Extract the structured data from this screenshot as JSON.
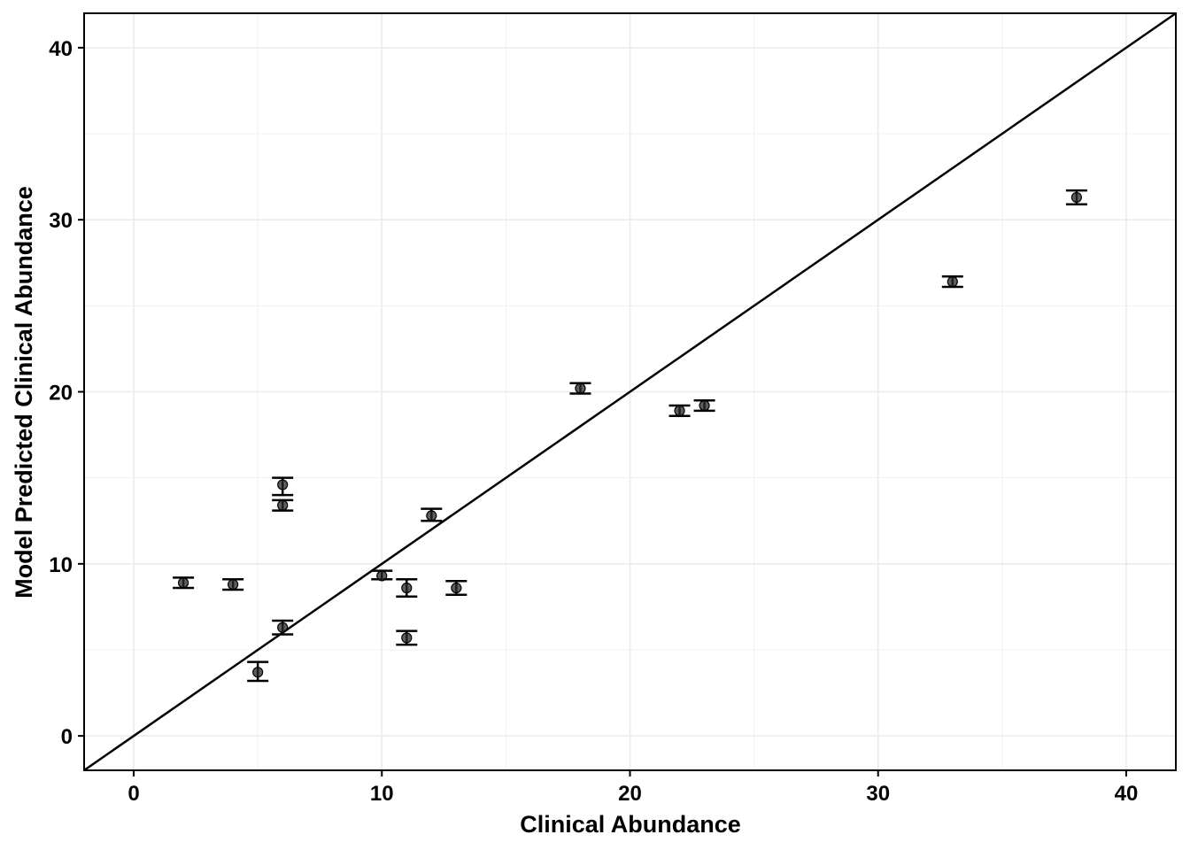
{
  "chart_data": {
    "type": "scatter",
    "title": "",
    "xlabel": "Clinical Abundance",
    "ylabel": "Model Predicted Clinical Abundance",
    "xlim": [
      -2,
      42
    ],
    "ylim": [
      -2,
      42
    ],
    "x_ticks": [
      0,
      10,
      20,
      30,
      40
    ],
    "y_ticks": [
      0,
      10,
      20,
      30,
      40
    ],
    "x_tick_labels": [
      "0",
      "10",
      "20",
      "30",
      "40"
    ],
    "y_tick_labels": [
      "0",
      "10",
      "20",
      "30",
      "40"
    ],
    "grid": true,
    "reference_line": "y = x",
    "points": [
      {
        "x": 2,
        "y": 8.9,
        "ymin": 8.6,
        "ymax": 9.2
      },
      {
        "x": 4,
        "y": 8.8,
        "ymin": 8.5,
        "ymax": 9.1
      },
      {
        "x": 5,
        "y": 3.7,
        "ymin": 3.2,
        "ymax": 4.3
      },
      {
        "x": 6,
        "y": 14.6,
        "ymin": 14.0,
        "ymax": 15.0
      },
      {
        "x": 6,
        "y": 13.4,
        "ymin": 13.1,
        "ymax": 13.7
      },
      {
        "x": 6,
        "y": 6.3,
        "ymin": 5.9,
        "ymax": 6.7
      },
      {
        "x": 10,
        "y": 9.3,
        "ymin": 9.1,
        "ymax": 9.6
      },
      {
        "x": 11,
        "y": 8.6,
        "ymin": 8.1,
        "ymax": 9.1
      },
      {
        "x": 11,
        "y": 5.7,
        "ymin": 5.3,
        "ymax": 6.1
      },
      {
        "x": 12,
        "y": 12.8,
        "ymin": 12.5,
        "ymax": 13.2
      },
      {
        "x": 13,
        "y": 8.6,
        "ymin": 8.2,
        "ymax": 9.0
      },
      {
        "x": 18,
        "y": 20.2,
        "ymin": 19.9,
        "ymax": 20.5
      },
      {
        "x": 22,
        "y": 18.9,
        "ymin": 18.6,
        "ymax": 19.2
      },
      {
        "x": 23,
        "y": 19.2,
        "ymin": 18.9,
        "ymax": 19.5
      },
      {
        "x": 33,
        "y": 26.4,
        "ymin": 26.1,
        "ymax": 26.7
      },
      {
        "x": 38,
        "y": 31.3,
        "ymin": 30.9,
        "ymax": 31.7
      }
    ]
  }
}
